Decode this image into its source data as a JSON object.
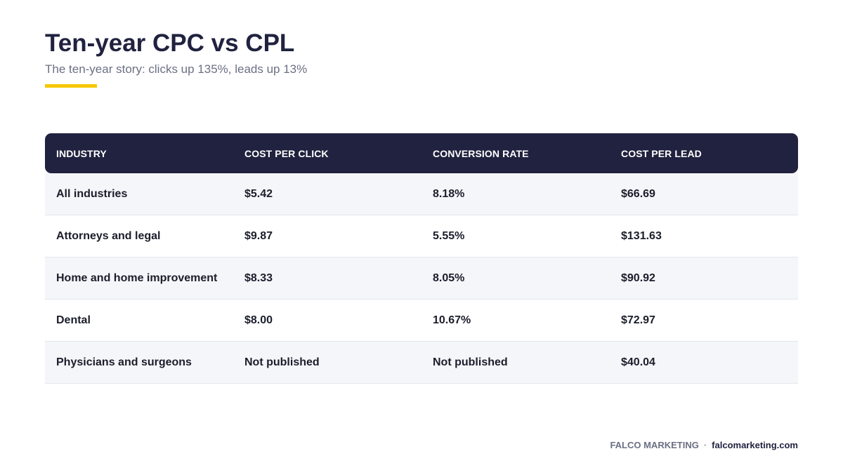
{
  "header": {
    "title": "Ten-year CPC vs CPL",
    "subtitle": "The ten-year story: clicks up 135%, leads up 13%"
  },
  "colors": {
    "navy": "#20223f",
    "accent": "#f5c800",
    "row_shade": "#f5f6fa"
  },
  "table": {
    "columns": [
      "INDUSTRY",
      "COST PER CLICK",
      "CONVERSION RATE",
      "COST PER LEAD"
    ],
    "rows": [
      [
        "All industries",
        "$5.42",
        "8.18%",
        "$66.69"
      ],
      [
        "Attorneys and legal",
        "$9.87",
        "5.55%",
        "$131.63"
      ],
      [
        "Home and home improvement",
        "$8.33",
        "8.05%",
        "$90.92"
      ],
      [
        "Dental",
        "$8.00",
        "10.67%",
        "$72.97"
      ],
      [
        "Physicians and surgeons",
        "Not published",
        "Not published",
        "$40.04"
      ]
    ]
  },
  "footer": {
    "brand": "FALCO MARKETING",
    "separator": "·",
    "site": "falcomarketing.com"
  }
}
